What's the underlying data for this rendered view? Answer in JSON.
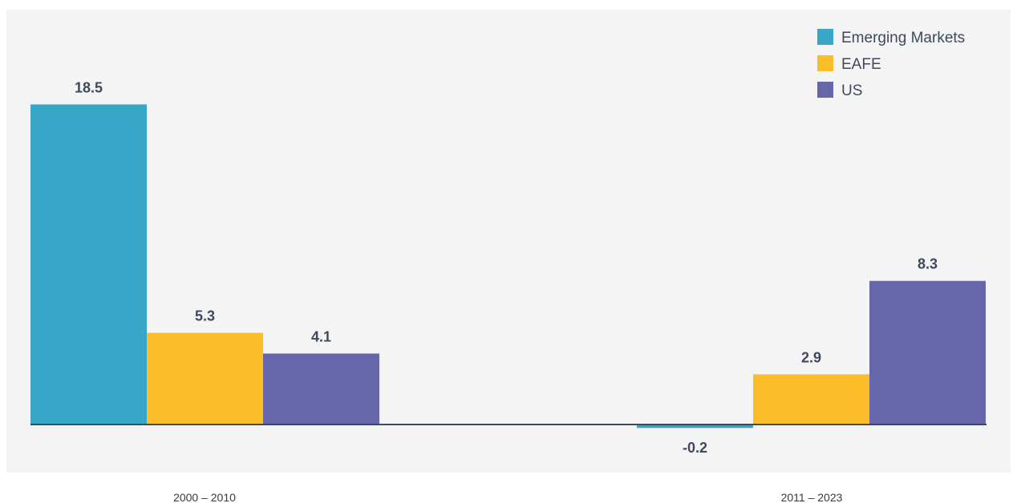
{
  "chart_data": {
    "type": "bar",
    "categories": [
      "2000 – 2010",
      "2011 – 2023"
    ],
    "series": [
      {
        "name": "Emerging Markets",
        "values": [
          18.5,
          -0.2
        ],
        "color": "#38a6c6"
      },
      {
        "name": "EAFE",
        "values": [
          5.3,
          2.9
        ],
        "color": "#fbbe28"
      },
      {
        "name": "US",
        "values": [
          4.1,
          8.3
        ],
        "color": "#6766ab"
      }
    ],
    "value_labels": [
      [
        "18.5",
        "-0.2"
      ],
      [
        "5.3",
        "2.9"
      ],
      [
        "4.1",
        "8.3"
      ]
    ],
    "ylim": [
      -3,
      22
    ],
    "grid": false,
    "legend_position": "top-right",
    "colors": {
      "plot_background": "#f4f4f4",
      "baseline": "#3e4a5c",
      "value_text": "#3e4a5c"
    }
  }
}
